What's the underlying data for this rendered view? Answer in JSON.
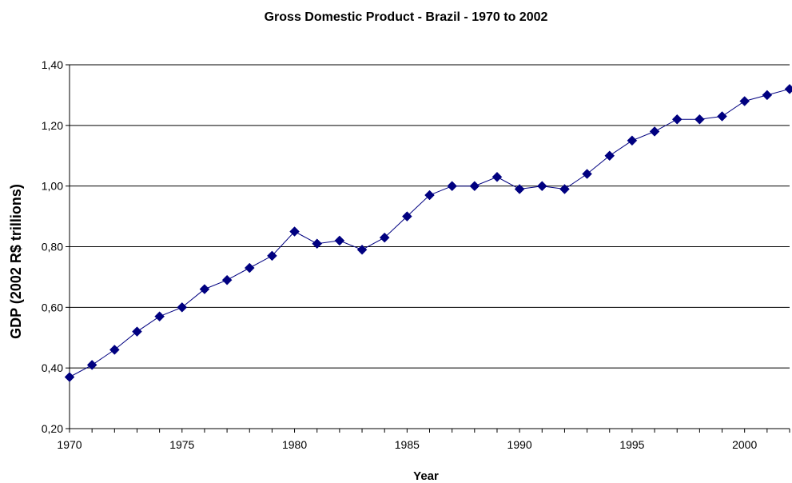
{
  "chart_data": {
    "type": "line",
    "title": "Gross Domestic Product - Brazil - 1970 to 2002",
    "xlabel": "Year",
    "ylabel": "GDP (2002 R$ trillions)",
    "xlim": [
      1970,
      2002
    ],
    "ylim": [
      0.2,
      1.4
    ],
    "x_ticks": [
      "1970",
      "1975",
      "1980",
      "1985",
      "1990",
      "1995",
      "2000"
    ],
    "y_ticks": [
      "0,20",
      "0,40",
      "0,60",
      "0,80",
      "1,00",
      "1,20",
      "1,40"
    ],
    "grid": "horizontal",
    "legend": "none",
    "series": [
      {
        "color": "#000080",
        "marker": "diamond",
        "x": [
          1970,
          1971,
          1972,
          1973,
          1974,
          1975,
          1976,
          1977,
          1978,
          1979,
          1980,
          1981,
          1982,
          1983,
          1984,
          1985,
          1986,
          1987,
          1988,
          1989,
          1990,
          1991,
          1992,
          1993,
          1994,
          1995,
          1996,
          1997,
          1998,
          1999,
          2000,
          2001,
          2002
        ],
        "values": [
          0.37,
          0.41,
          0.46,
          0.52,
          0.57,
          0.6,
          0.66,
          0.69,
          0.73,
          0.77,
          0.85,
          0.81,
          0.82,
          0.79,
          0.83,
          0.9,
          0.97,
          1.0,
          1.0,
          1.03,
          0.99,
          1.0,
          0.99,
          1.04,
          1.1,
          1.15,
          1.18,
          1.22,
          1.22,
          1.23,
          1.28,
          1.3,
          1.32
        ]
      }
    ]
  }
}
